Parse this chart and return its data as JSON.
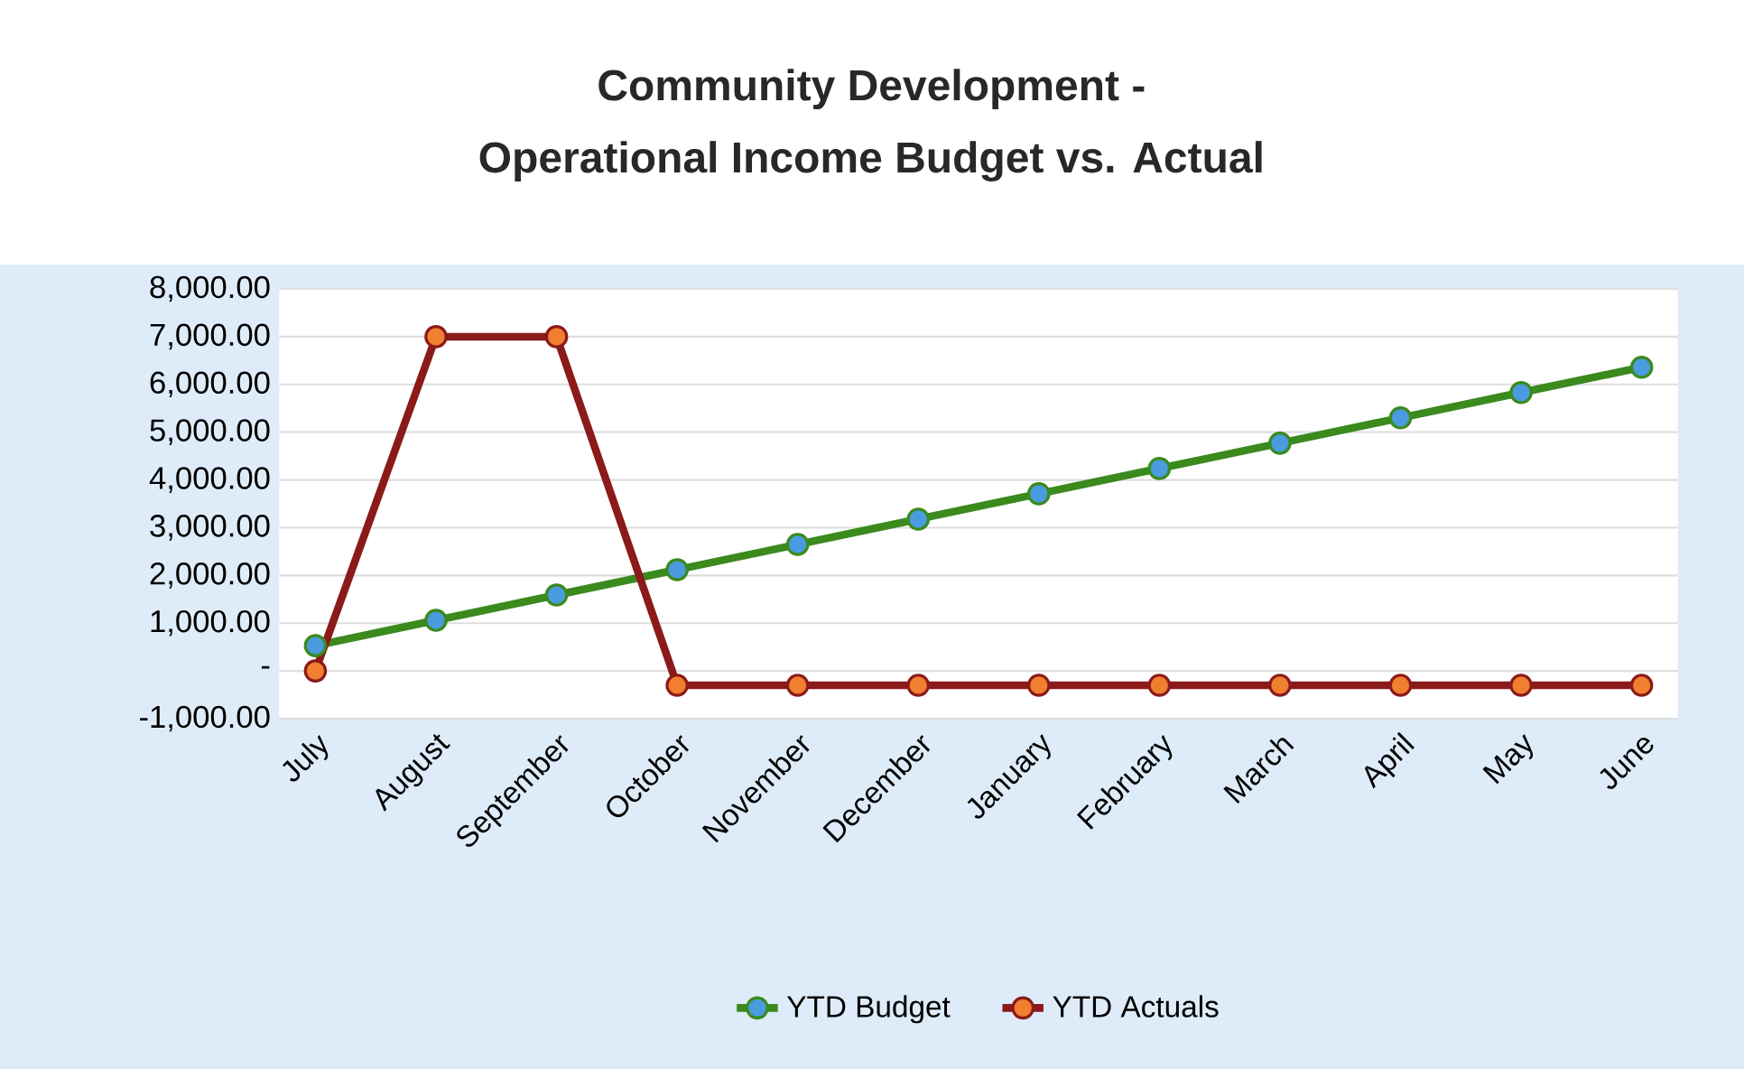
{
  "chart_data": {
    "type": "line",
    "title": "Community Development -",
    "subtitle": "Operational Income Budget vs. Actual",
    "categories": [
      "July",
      "August",
      "September",
      "October",
      "November",
      "December",
      "January",
      "February",
      "March",
      "April",
      "May",
      "June"
    ],
    "series": [
      {
        "name": "YTD Budget",
        "color": "#3a8a1e",
        "values": [
          530,
          1060,
          1590,
          2120,
          2650,
          3180,
          3710,
          4240,
          4770,
          5300,
          5830,
          6360
        ]
      },
      {
        "name": "YTD Actuals",
        "color": "#8b1a1a",
        "values": [
          0,
          7000,
          7000,
          -300,
          -300,
          -300,
          -300,
          -300,
          -300,
          -300,
          -300,
          -300
        ]
      }
    ],
    "ylim": [
      -1000,
      8000
    ],
    "yticks": [
      {
        "value": -1000,
        "label": "-1,000.00"
      },
      {
        "value": 0,
        "label": "-"
      },
      {
        "value": 1000,
        "label": "1,000.00"
      },
      {
        "value": 2000,
        "label": "2,000.00"
      },
      {
        "value": 3000,
        "label": "3,000.00"
      },
      {
        "value": 4000,
        "label": "4,000.00"
      },
      {
        "value": 5000,
        "label": "5,000.00"
      },
      {
        "value": 6000,
        "label": "6,000.00"
      },
      {
        "value": 7000,
        "label": "7,000.00"
      },
      {
        "value": 8000,
        "label": "8,000.00"
      }
    ],
    "grid": "y",
    "legend": "bottom",
    "marker": "circle",
    "line_style": "solid"
  }
}
